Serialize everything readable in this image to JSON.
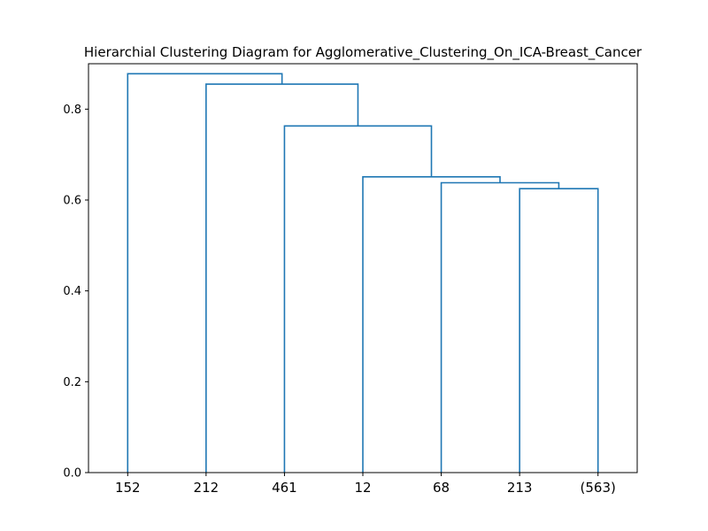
{
  "chart_data": {
    "type": "dendrogram",
    "title": "Hierarchial Clustering Diagram for Agglomerative_Clustering_On_ICA-Breast_Cancer",
    "xlabel": "",
    "ylabel": "",
    "ylim": [
      0,
      0.9
    ],
    "yticks": [
      "0.0",
      "0.2",
      "0.4",
      "0.6",
      "0.8"
    ],
    "leaves": [
      "152",
      "212",
      "461",
      "12",
      "68",
      "213",
      "(563)"
    ],
    "link_color": "#1f77b4",
    "merges": [
      {
        "left": "213",
        "right": "(563)",
        "height": 0.625
      },
      {
        "left": "68",
        "right": "213+(563)",
        "height": 0.638
      },
      {
        "left": "12",
        "right": "68+213+(563)",
        "height": 0.651
      },
      {
        "left": "461",
        "right": "12+68+213+(563)",
        "height": 0.763
      },
      {
        "left": "212",
        "right": "461+12+68+213+(563)",
        "height": 0.855
      },
      {
        "left": "152",
        "right": "212+461+12+68+213+(563)",
        "height": 0.878
      }
    ]
  }
}
